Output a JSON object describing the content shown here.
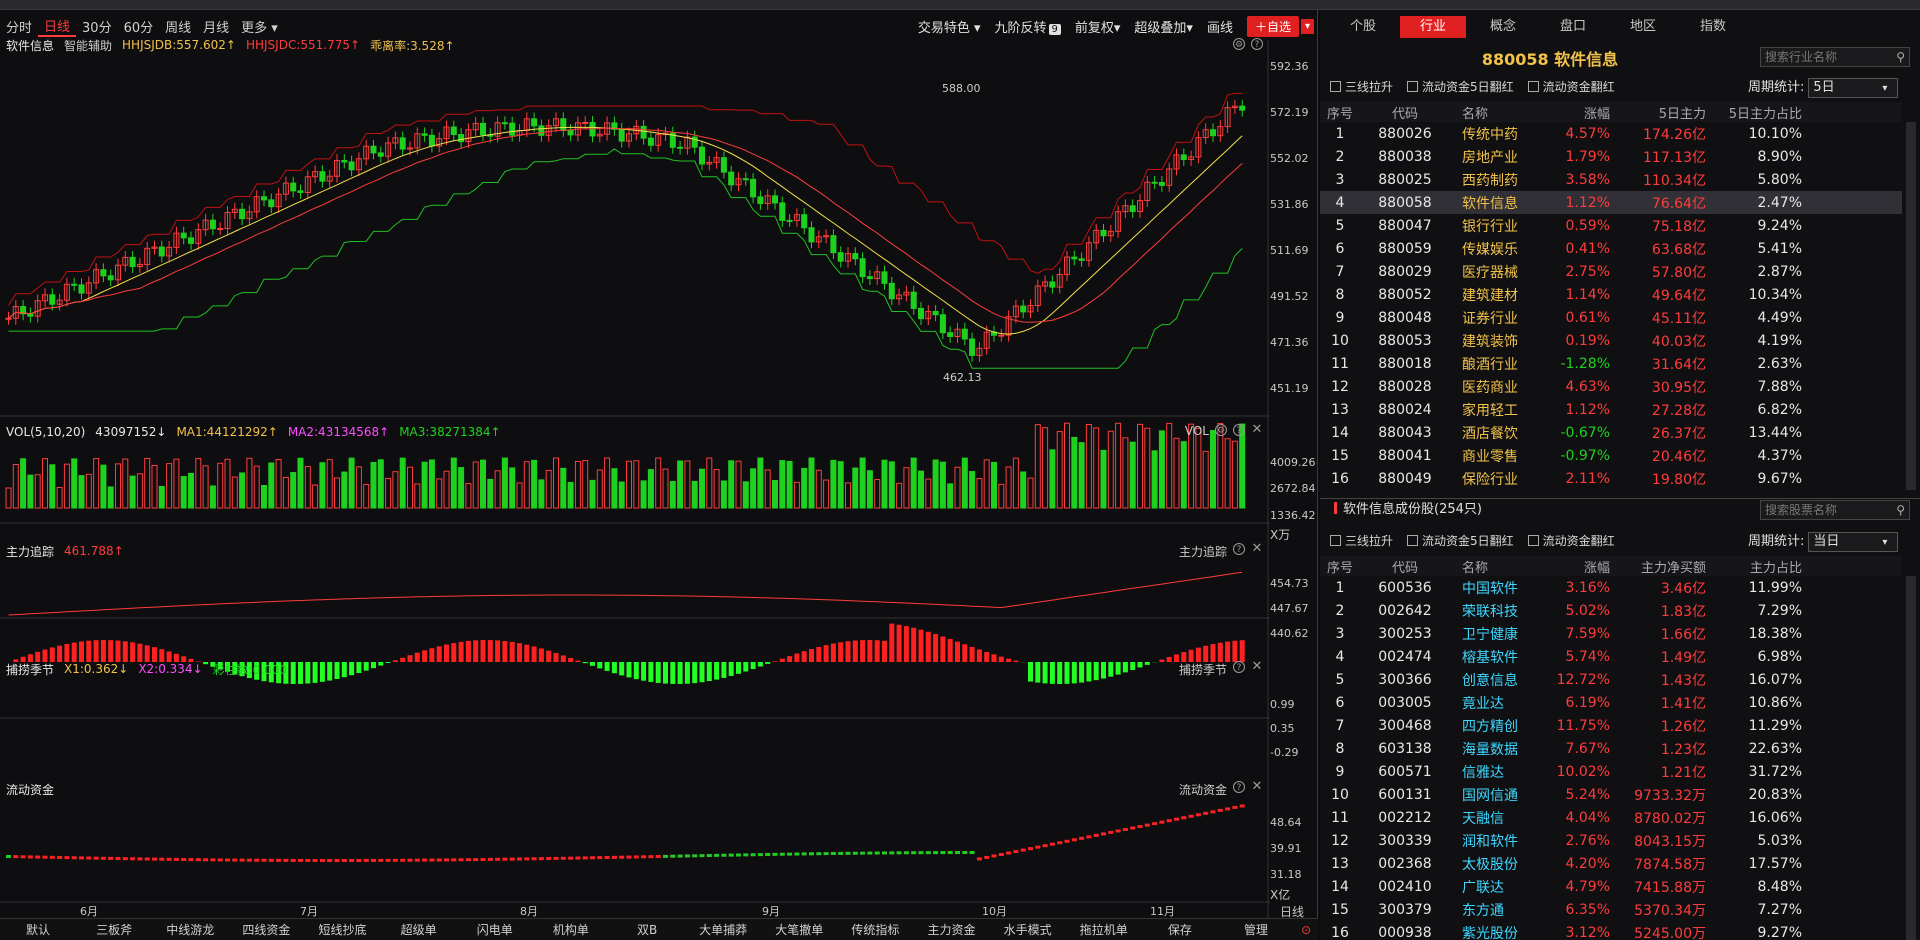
{
  "toolbar": {
    "periods": [
      "分时",
      "日线",
      "30分",
      "60分",
      "周线",
      "月线",
      "更多 ▾"
    ],
    "right": [
      "交易特色 ▾",
      "九阶反转",
      "前复权▾",
      "超级叠加▾",
      "画线"
    ],
    "add": "＋自选",
    "badge": "9"
  },
  "main_panel": {
    "name": "软件信息",
    "helper": "智能辅助",
    "l1": "HHJSJDB:557.602↑",
    "l2": "HHJSJDC:551.775↑",
    "l3": "乖离率:3.528↑",
    "axis": [
      "592.36",
      "572.19",
      "552.02",
      "531.86",
      "511.69",
      "491.52",
      "471.36",
      "451.19"
    ],
    "hi": "588.00",
    "lo": "462.13"
  },
  "vol_panel": {
    "name": "VOL(5,10,20)",
    "v": "43097152↓",
    "ma1": "MA1:44121292↑",
    "ma2": "MA2:43134568↑",
    "ma3": "MA3:38271384↑",
    "tag": "VOL",
    "axis": [
      "4009.26",
      "2672.84",
      "1336.42"
    ],
    "unit": "X万"
  },
  "trace_panel": {
    "name": "主力追踪",
    "v": "461.788↑",
    "tag": "主力追踪",
    "axis": [
      "454.73",
      "447.67",
      "440.62"
    ]
  },
  "catch_panel": {
    "name": "捕捞季节",
    "x1": "X1:0.362↓",
    "x2": "X2:0.334↓",
    "x3": "彩柱数:0.000",
    "tag": "捕捞季节",
    "axis": [
      "0.99",
      "0.35",
      "-0.29"
    ]
  },
  "flow_panel": {
    "name": "流动资金",
    "tag": "流动资金",
    "axis": [
      "48.64",
      "39.91",
      "31.18"
    ],
    "unit": "X亿"
  },
  "months": [
    "6月",
    "7月",
    "8月",
    "9月",
    "10月",
    "11月"
  ],
  "x_axis_label": "日线",
  "bottom": [
    "默认",
    "三板斧",
    "中线游龙",
    "四线资金",
    "短线抄底",
    "超级单",
    "闪电单",
    "机构单",
    "双B",
    "大单捕莽",
    "大笔撤单",
    "传统指标",
    "主力资金",
    "水手模式",
    "拖拉机单",
    "保存",
    "管理"
  ],
  "right": {
    "tabs": [
      "个股",
      "行业",
      "概念",
      "盘口",
      "地区",
      "指数"
    ],
    "title": "880058  软件信息",
    "search1": "搜索行业名称",
    "search2": "搜索股票名称",
    "checks": [
      "三线拉升",
      "流动资金5日翻红",
      "流动资金翻红"
    ],
    "period_label": "周期统计:",
    "period1": "5日",
    "period2": "当日",
    "head1": [
      "序号",
      "代码",
      "名称",
      "涨幅",
      "5日主力",
      "5日主力占比"
    ],
    "rows1": [
      [
        "1",
        "880026",
        "传统中药",
        "4.57%",
        "174.26亿",
        "10.10%"
      ],
      [
        "2",
        "880038",
        "房地产业",
        "1.79%",
        "117.13亿",
        "8.90%"
      ],
      [
        "3",
        "880025",
        "西药制药",
        "3.58%",
        "110.34亿",
        "5.80%"
      ],
      [
        "4",
        "880058",
        "软件信息",
        "1.12%",
        "76.64亿",
        "2.47%"
      ],
      [
        "5",
        "880047",
        "银行行业",
        "0.59%",
        "75.18亿",
        "9.24%"
      ],
      [
        "6",
        "880059",
        "传媒娱乐",
        "0.41%",
        "63.68亿",
        "5.41%"
      ],
      [
        "7",
        "880029",
        "医疗器械",
        "2.75%",
        "57.80亿",
        "2.87%"
      ],
      [
        "8",
        "880052",
        "建筑建材",
        "1.14%",
        "49.64亿",
        "10.34%"
      ],
      [
        "9",
        "880048",
        "证券行业",
        "0.61%",
        "45.11亿",
        "4.49%"
      ],
      [
        "10",
        "880053",
        "建筑装饰",
        "0.19%",
        "40.03亿",
        "4.19%"
      ],
      [
        "11",
        "880018",
        "酿酒行业",
        "-1.28%",
        "31.64亿",
        "2.63%"
      ],
      [
        "12",
        "880028",
        "医药商业",
        "4.63%",
        "30.95亿",
        "7.88%"
      ],
      [
        "13",
        "880024",
        "家用轻工",
        "1.12%",
        "27.28亿",
        "6.82%"
      ],
      [
        "14",
        "880043",
        "酒店餐饮",
        "-0.67%",
        "26.37亿",
        "13.44%"
      ],
      [
        "15",
        "880041",
        "商业零售",
        "-0.97%",
        "20.46亿",
        "4.37%"
      ],
      [
        "16",
        "880049",
        "保险行业",
        "2.11%",
        "19.80亿",
        "9.67%"
      ]
    ],
    "sect2": "软件信息成份股(254只)",
    "head2": [
      "序号",
      "代码",
      "名称",
      "涨幅",
      "主力净买额",
      "主力占比"
    ],
    "rows2": [
      [
        "1",
        "600536",
        "中国软件",
        "3.16%",
        "3.46亿",
        "11.99%"
      ],
      [
        "2",
        "002642",
        "荣联科技",
        "5.02%",
        "1.83亿",
        "7.29%"
      ],
      [
        "3",
        "300253",
        "卫宁健康",
        "7.59%",
        "1.66亿",
        "18.38%"
      ],
      [
        "4",
        "002474",
        "榕基软件",
        "5.74%",
        "1.49亿",
        "6.98%"
      ],
      [
        "5",
        "300366",
        "创意信息",
        "12.72%",
        "1.43亿",
        "16.07%"
      ],
      [
        "6",
        "003005",
        "竟业达",
        "6.19%",
        "1.41亿",
        "10.86%"
      ],
      [
        "7",
        "300468",
        "四方精创",
        "11.75%",
        "1.26亿",
        "11.29%"
      ],
      [
        "8",
        "603138",
        "海量数据",
        "7.67%",
        "1.23亿",
        "22.63%"
      ],
      [
        "9",
        "600571",
        "信雅达",
        "10.02%",
        "1.21亿",
        "31.72%"
      ],
      [
        "10",
        "600131",
        "国网信通",
        "5.24%",
        "9733.32万",
        "20.83%"
      ],
      [
        "11",
        "002212",
        "天融信",
        "4.04%",
        "8780.02万",
        "16.06%"
      ],
      [
        "12",
        "300339",
        "润和软件",
        "2.76%",
        "8043.15万",
        "5.03%"
      ],
      [
        "13",
        "002368",
        "太极股份",
        "4.20%",
        "7874.58万",
        "17.57%"
      ],
      [
        "14",
        "002410",
        "广联达",
        "4.79%",
        "7415.88万",
        "8.48%"
      ],
      [
        "15",
        "300379",
        "东方通",
        "6.35%",
        "5370.34万",
        "7.27%"
      ],
      [
        "16",
        "000938",
        "紫光股份",
        "3.12%",
        "5245.00万",
        "9.27%"
      ]
    ]
  },
  "colors": {
    "up": "#ff3c3c",
    "down": "#1fd11f",
    "accent": "#e02020",
    "name": "#f2c14a",
    "cyan": "#3fd7ff"
  }
}
